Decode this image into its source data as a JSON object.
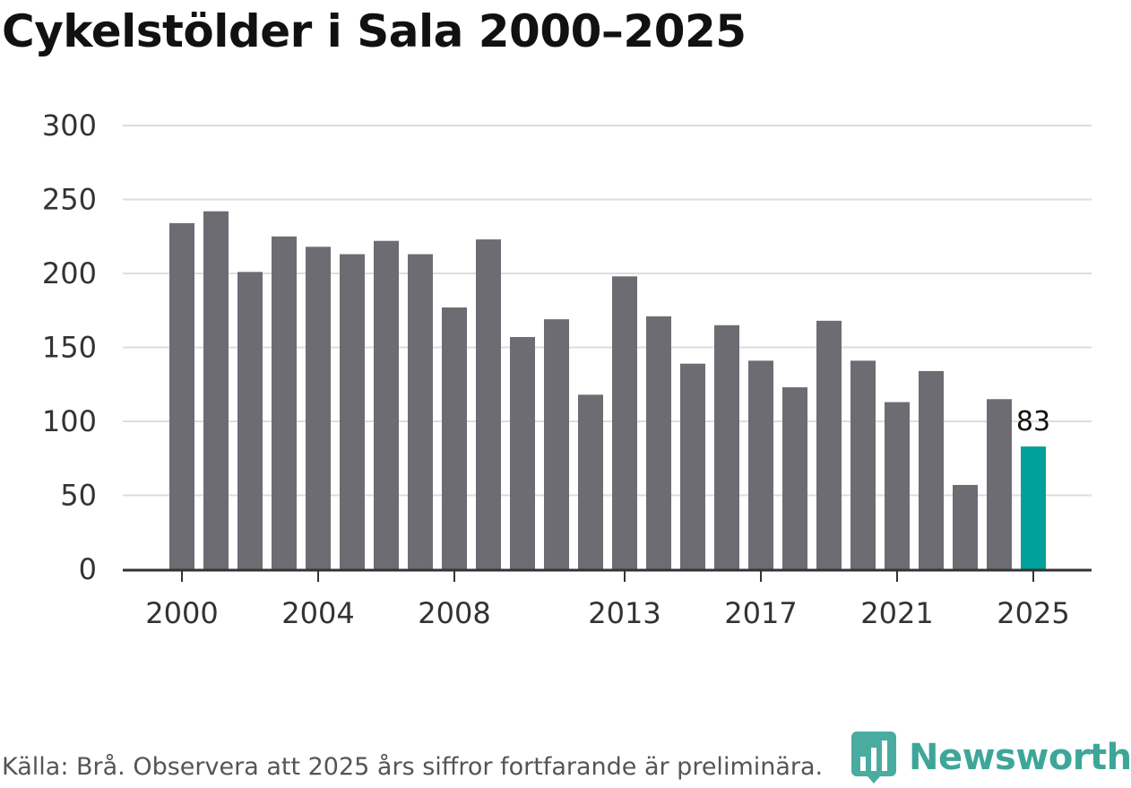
{
  "title": "Cykelstölder i Sala 2000–2025",
  "source": "Källa: Brå. Observera att 2025 års siffror fortfarande är preliminära.",
  "brand": {
    "name": "Newsworthy",
    "icon": "bar-chart-logo-icon"
  },
  "colors": {
    "bar": "#6d6c73",
    "highlight": "#00a19a",
    "grid": "#dddddd",
    "axis": "#333333"
  },
  "chart_data": {
    "type": "bar",
    "title": "Cykelstölder i Sala 2000–2025",
    "xlabel": "",
    "ylabel": "",
    "ylim": [
      0,
      300
    ],
    "yticks": [
      "0",
      "50",
      "100",
      "150",
      "200",
      "250",
      "300"
    ],
    "xticks": [
      "2000",
      "2004",
      "2008",
      "2013",
      "2017",
      "2021",
      "2025"
    ],
    "categories": [
      "2000",
      "2001",
      "2002",
      "2003",
      "2004",
      "2005",
      "2006",
      "2007",
      "2008",
      "2009",
      "2010",
      "2011",
      "2012",
      "2013",
      "2014",
      "2015",
      "2016",
      "2017",
      "2018",
      "2019",
      "2020",
      "2021",
      "2022",
      "2023",
      "2024",
      "2025"
    ],
    "values": [
      234,
      242,
      201,
      225,
      218,
      213,
      222,
      213,
      177,
      223,
      157,
      169,
      118,
      198,
      171,
      139,
      165,
      141,
      123,
      168,
      141,
      113,
      134,
      57,
      115,
      83
    ],
    "highlight": {
      "category": "2025",
      "label": "83"
    },
    "grid": true
  }
}
